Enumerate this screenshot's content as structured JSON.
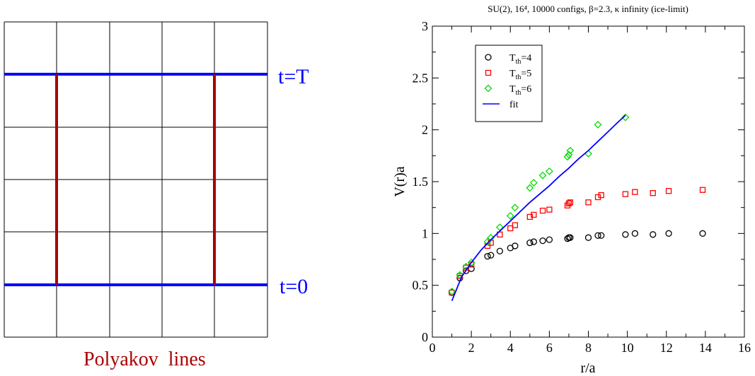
{
  "diagram": {
    "label_top": "t=T",
    "label_bottom": "t=0",
    "caption": "Polyakov  lines",
    "colors": {
      "grid": "#000000",
      "time_lines": "#0000ff",
      "polyakov_lines": "#aa0000",
      "caption": "#aa0000",
      "labels": "#0000ff"
    }
  },
  "chart_data": {
    "type": "scatter",
    "title": "SU(2), 16⁴, 10000 configs, β=2.3, κ  infinity (ice-limit)",
    "xlabel": "r/a",
    "ylabel": "V(r)a",
    "xlim": [
      0,
      16
    ],
    "ylim": [
      0,
      3
    ],
    "xticks": [
      "0",
      "2",
      "4",
      "6",
      "8",
      "10",
      "12",
      "14",
      "16"
    ],
    "yticks": [
      "0",
      "0.5",
      "1",
      "1.5",
      "2",
      "2.5",
      "3"
    ],
    "legend_position": "top-left",
    "series": [
      {
        "name": "T_th=4",
        "legend_label": "T",
        "legend_sub": "th",
        "legend_suffix": "=4",
        "marker": "circle",
        "color": "#000000",
        "x": [
          1.0,
          1.41,
          1.73,
          2.0,
          2.83,
          3.0,
          3.46,
          4.0,
          4.24,
          5.0,
          5.2,
          5.66,
          6.0,
          6.93,
          7.0,
          7.07,
          8.0,
          8.49,
          8.66,
          9.9,
          10.39,
          11.31,
          12.12,
          13.86
        ],
        "y": [
          0.43,
          0.57,
          0.64,
          0.66,
          0.78,
          0.79,
          0.83,
          0.86,
          0.88,
          0.91,
          0.92,
          0.93,
          0.94,
          0.95,
          0.96,
          0.96,
          0.96,
          0.98,
          0.98,
          0.99,
          1.0,
          0.99,
          1.0,
          1.0
        ]
      },
      {
        "name": "T_th=5",
        "legend_label": "T",
        "legend_sub": "th",
        "legend_suffix": "=5",
        "marker": "square",
        "color": "#ff0000",
        "x": [
          1.0,
          1.41,
          1.73,
          2.0,
          2.83,
          3.0,
          3.46,
          4.0,
          4.24,
          5.0,
          5.2,
          5.66,
          6.0,
          6.93,
          7.0,
          7.07,
          8.0,
          8.49,
          8.66,
          9.9,
          10.39,
          11.31,
          12.12,
          13.86
        ],
        "y": [
          0.43,
          0.59,
          0.67,
          0.7,
          0.88,
          0.91,
          0.99,
          1.05,
          1.08,
          1.16,
          1.18,
          1.22,
          1.23,
          1.27,
          1.29,
          1.3,
          1.3,
          1.35,
          1.37,
          1.38,
          1.4,
          1.39,
          1.41,
          1.42
        ]
      },
      {
        "name": "T_th=6",
        "legend_label": "T",
        "legend_sub": "th",
        "legend_suffix": "=6",
        "marker": "diamond",
        "color": "#00dd00",
        "x": [
          1.0,
          1.41,
          1.73,
          2.0,
          2.83,
          3.0,
          3.46,
          4.0,
          4.24,
          5.0,
          5.2,
          5.66,
          6.0,
          6.93,
          7.0,
          7.07,
          8.0,
          8.49,
          9.9
        ],
        "y": [
          0.44,
          0.6,
          0.68,
          0.72,
          0.92,
          0.96,
          1.06,
          1.17,
          1.25,
          1.44,
          1.49,
          1.56,
          1.6,
          1.74,
          1.76,
          1.8,
          1.77,
          2.05,
          2.12
        ]
      },
      {
        "name": "fit",
        "legend_label": "fit",
        "legend_sub": "",
        "legend_suffix": "",
        "marker": "line",
        "color": "#0000ff",
        "x": [
          1.0,
          1.5,
          2.0,
          2.5,
          3.0,
          3.5,
          4.0,
          4.5,
          5.0,
          5.5,
          6.0,
          6.5,
          7.0,
          7.5,
          8.0,
          8.5,
          9.0,
          9.5,
          9.9
        ],
        "y": [
          0.35,
          0.58,
          0.72,
          0.84,
          0.94,
          1.03,
          1.12,
          1.21,
          1.3,
          1.38,
          1.46,
          1.55,
          1.63,
          1.72,
          1.8,
          1.89,
          1.98,
          2.07,
          2.14
        ]
      }
    ]
  }
}
